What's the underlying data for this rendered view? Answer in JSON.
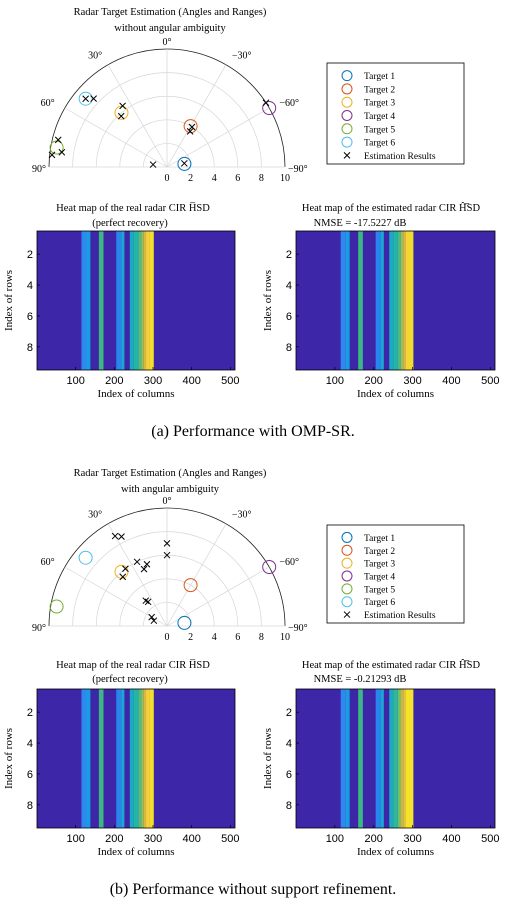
{
  "figures": [
    {
      "caption": "(a) Performance with OMP-SR.",
      "polar_title": [
        "Radar Target Estimation (Angles and Ranges)",
        "without angular ambiguity"
      ],
      "heatmap_left_title": [
        "Heat map of the real radar CIR H̅SD",
        "(perfect recovery)"
      ],
      "heatmap_right_title": [
        "Heat map of the estimated radar CIR Ĥ̅SD",
        "NMSE = -17.5227 dB"
      ]
    },
    {
      "caption": "(b) Performance without support refinement.",
      "polar_title": [
        "Radar Target Estimation (Angles and Ranges)",
        "with angular ambiguity"
      ],
      "heatmap_left_title": [
        "Heat map of the real radar CIR H̅SD",
        "(perfect recovery)"
      ],
      "heatmap_right_title": [
        "Heat map of the estimated radar CIR Ĥ̅SD",
        "NMSE = -0.21293 dB"
      ]
    }
  ],
  "colors": {
    "target1": "#0072BD",
    "target2": "#D95319",
    "target3": "#EDB120",
    "target4": "#7E2F8E",
    "target5": "#77AC30",
    "target6": "#4DBEEE",
    "estimate": "#000000",
    "heatmap_background": "#3E26A8"
  },
  "chart_data": [
    {
      "type": "scatter",
      "subtype": "polar",
      "title": "Radar Target Estimation (Angles and Ranges) without angular ambiguity",
      "theta_range_deg": [
        -90,
        90
      ],
      "theta_ticks": [
        "0°",
        "30°",
        "60°",
        "90°",
        "−30°",
        "−60°",
        "−90°"
      ],
      "r_range": [
        0,
        10
      ],
      "r_ticks": [
        "0",
        "2",
        "4",
        "6",
        "8",
        "10"
      ],
      "legend": [
        "Target 1",
        "Target 2",
        "Target 3",
        "Target 4",
        "Target 5",
        "Target 6",
        "Estimation Results"
      ],
      "legend_position": "right",
      "targets": [
        {
          "name": "Target 1",
          "theta": -80,
          "r": 1.5
        },
        {
          "name": "Target 2",
          "theta": -30,
          "r": 4
        },
        {
          "name": "Target 3",
          "theta": 40,
          "r": 6
        },
        {
          "name": "Target 4",
          "theta": -60,
          "r": 10
        },
        {
          "name": "Target 5",
          "theta": 80,
          "r": 9.5
        },
        {
          "name": "Target 6",
          "theta": 50,
          "r": 9
        }
      ],
      "estimates": [
        {
          "theta": -78,
          "r": 1.5
        },
        {
          "theta": 80,
          "r": 1.2
        },
        {
          "theta": -32,
          "r": 4
        },
        {
          "theta": -33,
          "r": 3.6
        },
        {
          "theta": 36,
          "r": 6.4
        },
        {
          "theta": 42,
          "r": 5.8
        },
        {
          "theta": 50,
          "r": 9
        },
        {
          "theta": 47,
          "r": 8.5
        },
        {
          "theta": 76,
          "r": 9.5
        },
        {
          "theta": 82,
          "r": 9
        },
        {
          "theta": 84,
          "r": 9.8
        },
        {
          "theta": -57,
          "r": 10
        }
      ]
    },
    {
      "type": "heatmap",
      "title": "Heat map of the real radar CIR H̅SD (perfect recovery)",
      "xlabel": "Index of columns",
      "ylabel": "Index of rows",
      "x_ticks": [
        100,
        200,
        300,
        400,
        500
      ],
      "y_ticks": [
        2,
        4,
        6,
        8
      ],
      "x_range": [
        0,
        512
      ],
      "y_range": [
        0.5,
        9.5
      ],
      "stripes": [
        {
          "from": 115,
          "to": 128,
          "color": "#2E88F0"
        },
        {
          "from": 128,
          "to": 138,
          "color": "#1A9CE0"
        },
        {
          "from": 160,
          "to": 172,
          "color": "#3BB784"
        },
        {
          "from": 205,
          "to": 218,
          "color": "#2A86EE"
        },
        {
          "from": 218,
          "to": 226,
          "color": "#1AA8D3"
        },
        {
          "from": 240,
          "to": 250,
          "color": "#1CA9C4"
        },
        {
          "from": 250,
          "to": 262,
          "color": "#22B5A8"
        },
        {
          "from": 262,
          "to": 270,
          "color": "#52BC7F"
        },
        {
          "from": 270,
          "to": 276,
          "color": "#9ABF55"
        },
        {
          "from": 276,
          "to": 282,
          "color": "#D7BA3D"
        },
        {
          "from": 282,
          "to": 292,
          "color": "#F9D03A"
        },
        {
          "from": 292,
          "to": 302,
          "color": "#F1DF2B"
        }
      ]
    },
    {
      "type": "heatmap",
      "title": "Heat map of the estimated radar CIR Ĥ̅SD, NMSE = -17.5227 dB",
      "xlabel": "Index of columns",
      "ylabel": "Index of rows",
      "x_ticks": [
        100,
        200,
        300,
        400,
        500
      ],
      "y_ticks": [
        2,
        4,
        6,
        8
      ],
      "x_range": [
        0,
        512
      ],
      "y_range": [
        0.5,
        9.5
      ],
      "stripes": [
        {
          "from": 115,
          "to": 128,
          "color": "#2E88F0"
        },
        {
          "from": 128,
          "to": 138,
          "color": "#1A9CE0"
        },
        {
          "from": 160,
          "to": 172,
          "color": "#3BB784"
        },
        {
          "from": 205,
          "to": 218,
          "color": "#2A86EE"
        },
        {
          "from": 218,
          "to": 226,
          "color": "#1AA8D3"
        },
        {
          "from": 240,
          "to": 250,
          "color": "#1CA9C4"
        },
        {
          "from": 250,
          "to": 262,
          "color": "#22B5A8"
        },
        {
          "from": 262,
          "to": 270,
          "color": "#4EBA82"
        },
        {
          "from": 270,
          "to": 276,
          "color": "#A0BF52"
        },
        {
          "from": 276,
          "to": 282,
          "color": "#DBB93F"
        },
        {
          "from": 282,
          "to": 292,
          "color": "#F8D23A"
        },
        {
          "from": 292,
          "to": 302,
          "color": "#EEE02A"
        }
      ]
    },
    {
      "type": "scatter",
      "subtype": "polar",
      "title": "Radar Target Estimation (Angles and Ranges) with angular ambiguity",
      "theta_range_deg": [
        -90,
        90
      ],
      "theta_ticks": [
        "0°",
        "30°",
        "60°",
        "90°",
        "−30°",
        "−60°",
        "−90°"
      ],
      "r_range": [
        0,
        10
      ],
      "r_ticks": [
        "0",
        "2",
        "4",
        "6",
        "8",
        "10"
      ],
      "legend": [
        "Target 1",
        "Target 2",
        "Target 3",
        "Target 4",
        "Target 5",
        "Target 6",
        "Estimation Results"
      ],
      "legend_position": "right",
      "targets": [
        {
          "name": "Target 1",
          "theta": -80,
          "r": 1.5
        },
        {
          "name": "Target 2",
          "theta": -30,
          "r": 4
        },
        {
          "name": "Target 3",
          "theta": 40,
          "r": 6
        },
        {
          "name": "Target 4",
          "theta": -60,
          "r": 10
        },
        {
          "name": "Target 5",
          "theta": 80,
          "r": 9.5
        },
        {
          "name": "Target 6",
          "theta": 50,
          "r": 9
        }
      ],
      "estimates": [
        {
          "theta": 0,
          "r": 7
        },
        {
          "theta": 0,
          "r": 6
        },
        {
          "theta": 18,
          "r": 5.5
        },
        {
          "theta": 22,
          "r": 5.2
        },
        {
          "theta": 25,
          "r": 6
        },
        {
          "theta": 27,
          "r": 8.5
        },
        {
          "theta": 30,
          "r": 8.8
        },
        {
          "theta": 36,
          "r": 6
        },
        {
          "theta": 42,
          "r": 5.6
        },
        {
          "theta": 40,
          "r": 2.8
        },
        {
          "theta": 38,
          "r": 2.6
        },
        {
          "theta": 60,
          "r": 1.5
        },
        {
          "theta": 68,
          "r": 1.2
        }
      ]
    },
    {
      "type": "heatmap",
      "title": "Heat map of the real radar CIR H̅SD (perfect recovery)",
      "xlabel": "Index of columns",
      "ylabel": "Index of rows",
      "x_ticks": [
        100,
        200,
        300,
        400,
        500
      ],
      "y_ticks": [
        2,
        4,
        6,
        8
      ],
      "x_range": [
        0,
        512
      ],
      "y_range": [
        0.5,
        9.5
      ],
      "stripes": [
        {
          "from": 115,
          "to": 128,
          "color": "#2E88F0"
        },
        {
          "from": 128,
          "to": 138,
          "color": "#1A9CE0"
        },
        {
          "from": 160,
          "to": 172,
          "color": "#3BB784"
        },
        {
          "from": 205,
          "to": 218,
          "color": "#2A86EE"
        },
        {
          "from": 218,
          "to": 226,
          "color": "#1AA8D3"
        },
        {
          "from": 240,
          "to": 250,
          "color": "#1CA9C4"
        },
        {
          "from": 250,
          "to": 262,
          "color": "#22B5A8"
        },
        {
          "from": 262,
          "to": 270,
          "color": "#52BC7F"
        },
        {
          "from": 270,
          "to": 276,
          "color": "#9ABF55"
        },
        {
          "from": 276,
          "to": 282,
          "color": "#D7BA3D"
        },
        {
          "from": 282,
          "to": 292,
          "color": "#F9D03A"
        },
        {
          "from": 292,
          "to": 302,
          "color": "#F1DF2B"
        }
      ]
    },
    {
      "type": "heatmap",
      "title": "Heat map of the estimated radar CIR Ĥ̅SD, NMSE = -0.21293 dB",
      "xlabel": "Index of columns",
      "ylabel": "Index of rows",
      "x_ticks": [
        100,
        200,
        300,
        400,
        500
      ],
      "y_ticks": [
        2,
        4,
        6,
        8
      ],
      "x_range": [
        0,
        512
      ],
      "y_range": [
        0.5,
        9.5
      ],
      "stripes": [
        {
          "from": 115,
          "to": 128,
          "color": "#2E88F0"
        },
        {
          "from": 128,
          "to": 138,
          "color": "#1A9CE0"
        },
        {
          "from": 160,
          "to": 172,
          "color": "#3BB784"
        },
        {
          "from": 205,
          "to": 218,
          "color": "#2A86EE"
        },
        {
          "from": 218,
          "to": 226,
          "color": "#1AA8D3"
        },
        {
          "from": 240,
          "to": 250,
          "color": "#1CA9C4"
        },
        {
          "from": 250,
          "to": 262,
          "color": "#2FB89A"
        },
        {
          "from": 262,
          "to": 268,
          "color": "#6FC06A"
        },
        {
          "from": 268,
          "to": 276,
          "color": "#BDBE48"
        },
        {
          "from": 276,
          "to": 282,
          "color": "#E8C43A"
        },
        {
          "from": 282,
          "to": 292,
          "color": "#F9E12A"
        },
        {
          "from": 292,
          "to": 302,
          "color": "#F3E52B"
        }
      ]
    }
  ]
}
